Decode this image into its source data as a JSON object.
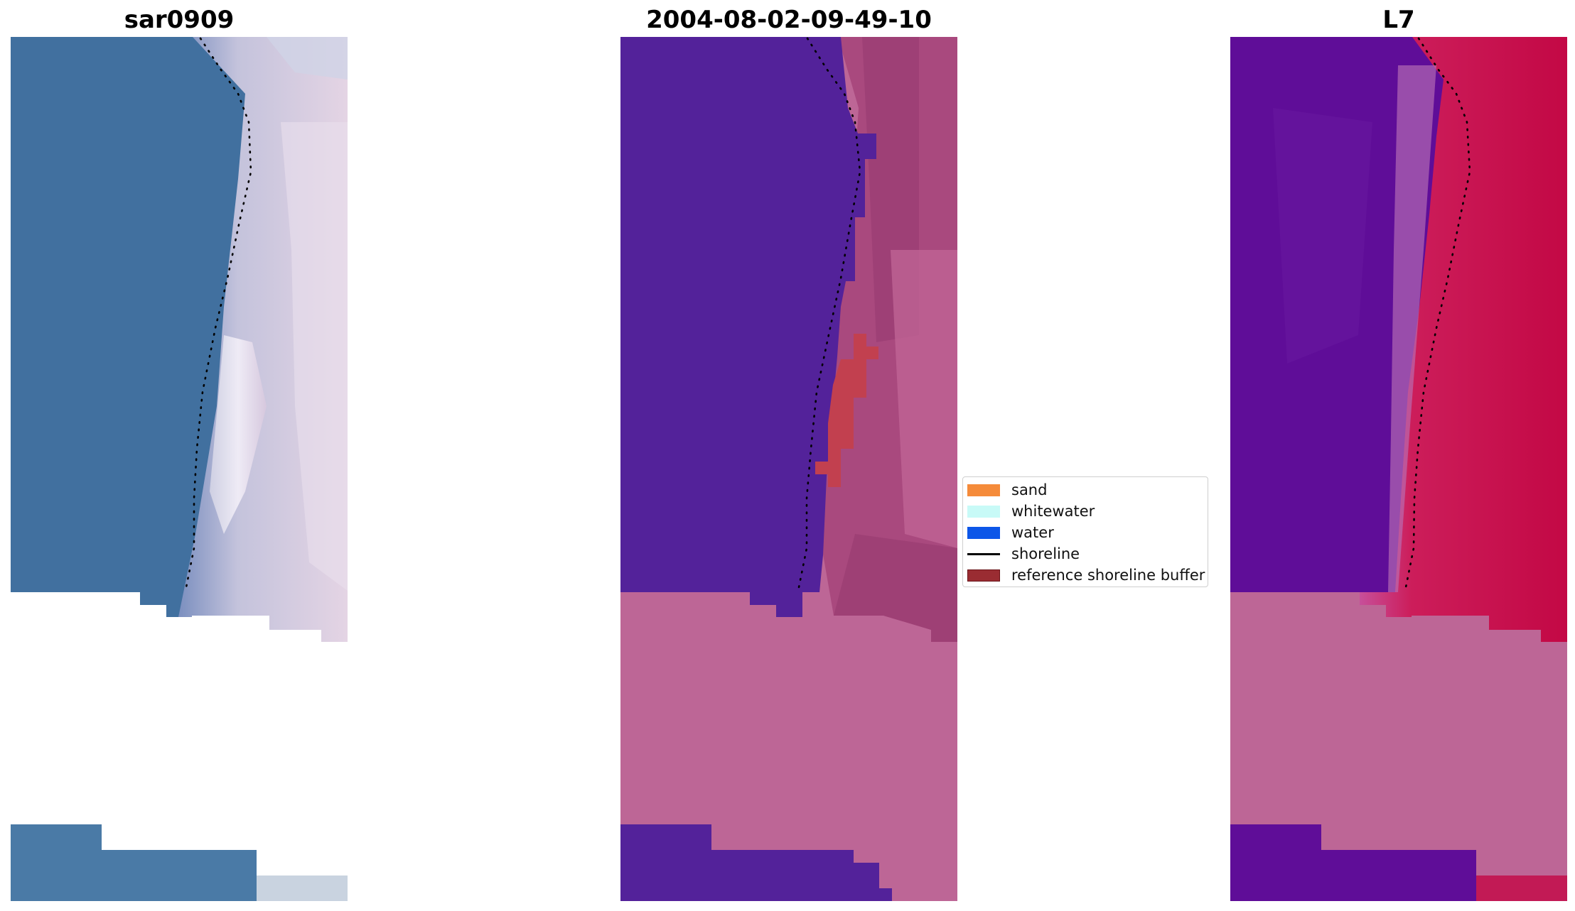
{
  "panels": [
    {
      "title": "sar0909"
    },
    {
      "title": "2004-08-02-09-49-10"
    },
    {
      "title": "L7"
    }
  ],
  "legend": [
    {
      "label": "sand",
      "color": "#f58b3a",
      "kind": "patch"
    },
    {
      "label": "whitewater",
      "color": "#c8faf7",
      "kind": "patch"
    },
    {
      "label": "water",
      "color": "#0c56e8",
      "kind": "patch"
    },
    {
      "label": "shoreline",
      "color": "#000000",
      "kind": "line"
    },
    {
      "label": "reference shoreline buffer",
      "color": "#9a2c32",
      "kind": "patch",
      "edge": "#6b1318"
    }
  ],
  "colors": {
    "masked_area": "#bd6696",
    "classified_water": "#53229a",
    "rgb_water": "#41709f",
    "nir_water": "#5f0d98",
    "nir_land": "#c9084a",
    "buffer_red": "#c2404f"
  }
}
